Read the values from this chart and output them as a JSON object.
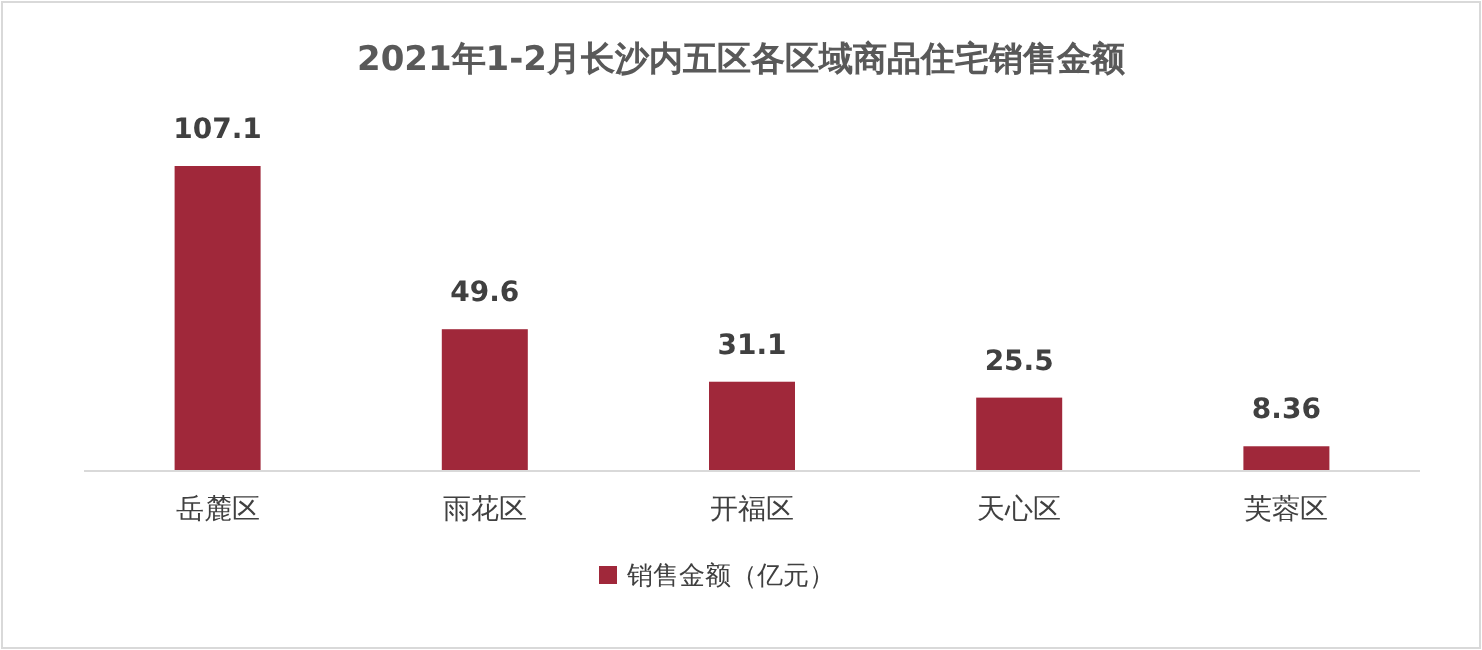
{
  "chart_data": {
    "type": "bar",
    "title": "2021年1-2月长沙内五区各区域商品住宅销售金额",
    "categories": [
      "岳麓区",
      "雨花区",
      "开福区",
      "天心区",
      "芙蓉区"
    ],
    "series": [
      {
        "name": "销售金额（亿元）",
        "color": "#a0283a",
        "values": [
          107.1,
          49.6,
          31.1,
          25.5,
          8.36
        ]
      }
    ],
    "data_labels": true,
    "legend": "bottom",
    "grid": false
  }
}
